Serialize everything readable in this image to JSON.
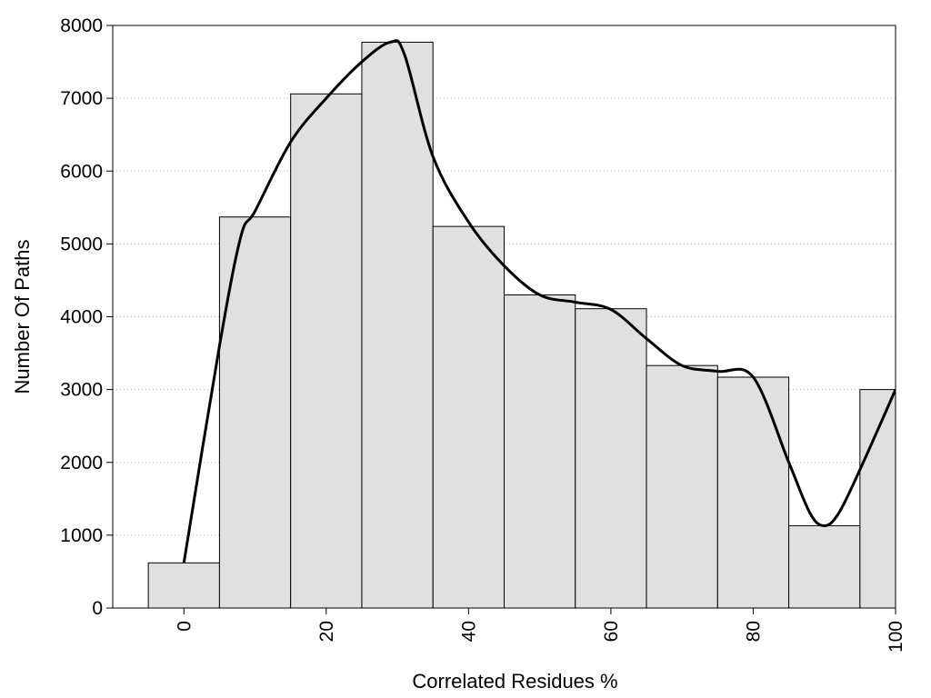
{
  "chart_data": {
    "type": "bar",
    "title": "",
    "xlabel": "Correlated Residues %",
    "ylabel": "Number Of Paths",
    "xlim": [
      -10,
      100
    ],
    "ylim": [
      0,
      8000
    ],
    "x_ticks": [
      0,
      20,
      40,
      60,
      80,
      100
    ],
    "y_ticks": [
      0,
      1000,
      2000,
      3000,
      4000,
      5000,
      6000,
      7000,
      8000
    ],
    "grid": "horizontal dotted",
    "legend": "none",
    "bars": [
      {
        "x": 0,
        "width": 10,
        "value": 620
      },
      {
        "x": 10,
        "width": 10,
        "value": 5370
      },
      {
        "x": 20,
        "width": 10,
        "value": 7060
      },
      {
        "x": 30,
        "width": 10,
        "value": 7770
      },
      {
        "x": 40,
        "width": 10,
        "value": 5240
      },
      {
        "x": 50,
        "width": 10,
        "value": 4300
      },
      {
        "x": 60,
        "width": 10,
        "value": 4110
      },
      {
        "x": 70,
        "width": 10,
        "value": 3330
      },
      {
        "x": 80,
        "width": 10,
        "value": 3170
      },
      {
        "x": 90,
        "width": 10,
        "value": 1130
      },
      {
        "x": 100,
        "width": 10,
        "value": 3000
      }
    ],
    "smooth_curve": {
      "x": [
        0,
        5,
        8,
        10,
        15,
        20,
        25,
        29,
        31,
        35,
        40,
        45,
        50,
        55,
        60,
        65,
        70,
        75,
        80,
        85,
        88,
        90,
        92,
        95,
        100
      ],
      "y": [
        620,
        3600,
        5100,
        5450,
        6400,
        7000,
        7500,
        7770,
        7600,
        6200,
        5300,
        4700,
        4300,
        4200,
        4100,
        3700,
        3330,
        3250,
        3170,
        2000,
        1300,
        1130,
        1300,
        1900,
        3000
      ]
    },
    "colors": {
      "bar_fill": "#e0e0e0",
      "bar_stroke": "#000000",
      "curve": "#000000",
      "grid": "#bbbbbb"
    }
  }
}
